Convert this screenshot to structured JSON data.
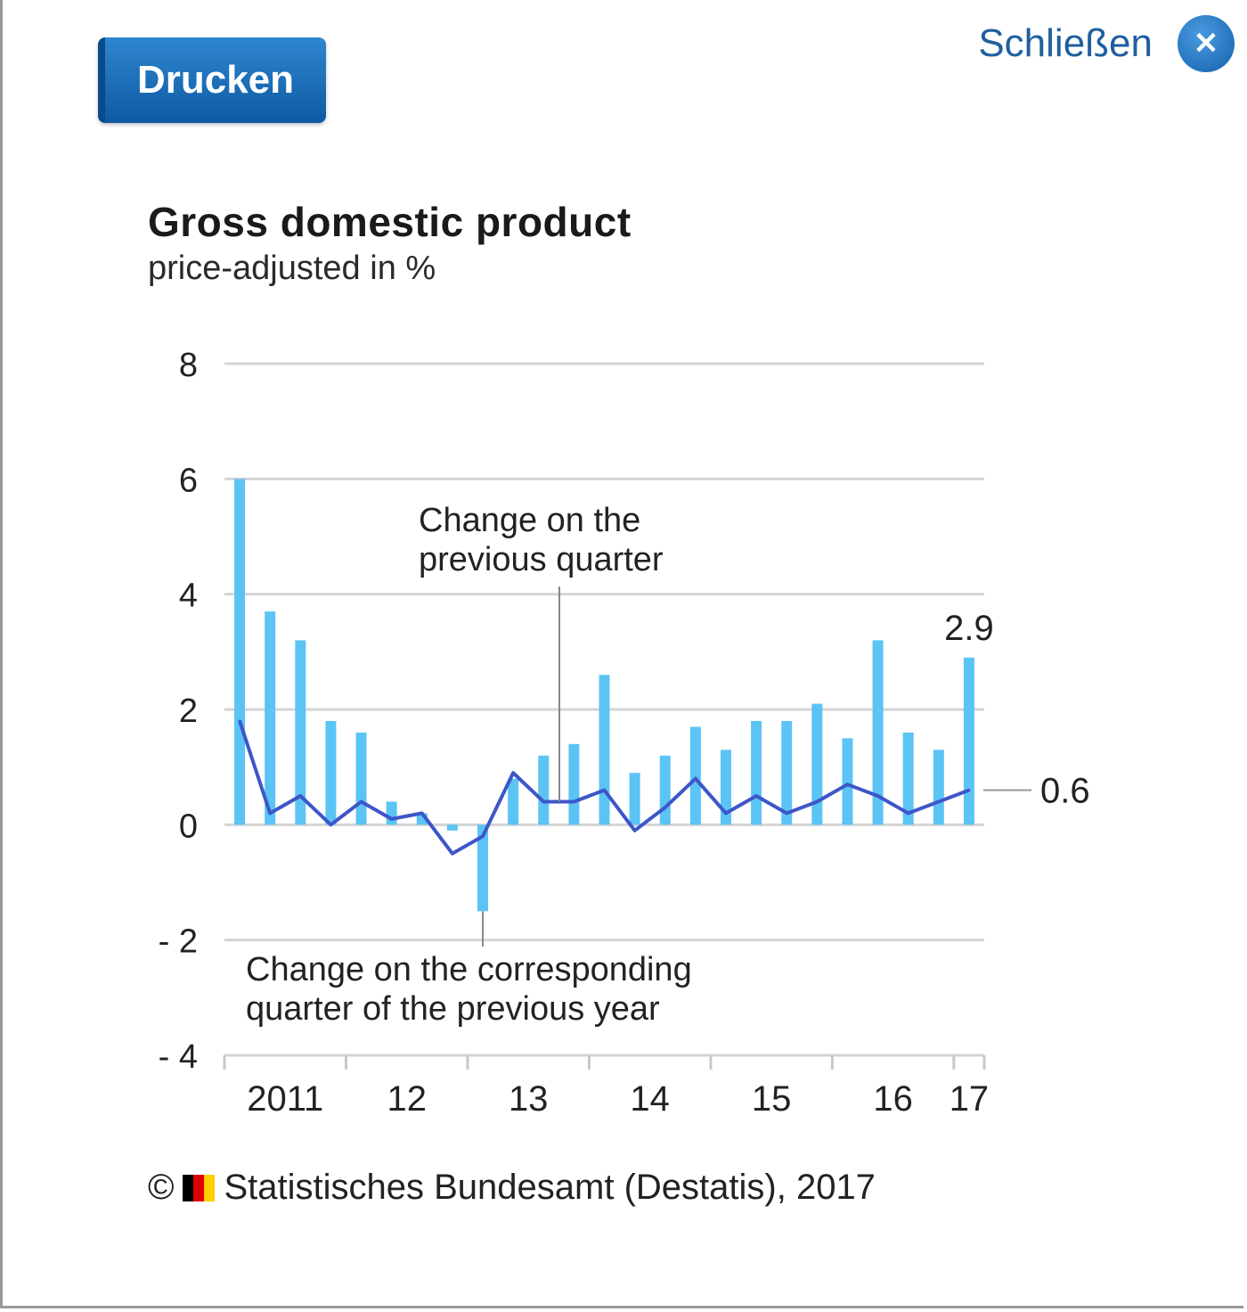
{
  "toolbar": {
    "print_label": "Drucken",
    "close_label": "Schließen"
  },
  "chart_data": {
    "type": "bar+line",
    "title": "Gross domestic product",
    "subtitle": "price-adjusted in %",
    "ylim": [
      -4,
      8
    ],
    "yticks": [
      8,
      6,
      4,
      2,
      0,
      -2,
      -4
    ],
    "year_labels": [
      "2011",
      "12",
      "13",
      "14",
      "15",
      "16",
      "17"
    ],
    "series": [
      {
        "name": "Change on the corresponding quarter of the previous year",
        "kind": "bar",
        "color": "#5bc4f5",
        "values": [
          6.0,
          3.7,
          3.2,
          1.8,
          1.6,
          0.4,
          0.2,
          -0.1,
          -1.5,
          0.8,
          1.2,
          1.4,
          2.6,
          0.9,
          1.2,
          1.7,
          1.3,
          1.8,
          1.8,
          2.1,
          1.5,
          3.2,
          1.6,
          1.3,
          2.9
        ]
      },
      {
        "name": "Change on the previous quarter",
        "kind": "line",
        "color": "#3d56c8",
        "values": [
          1.8,
          0.2,
          0.5,
          0.0,
          0.4,
          0.1,
          0.2,
          -0.5,
          -0.2,
          0.9,
          0.4,
          0.4,
          0.6,
          -0.1,
          0.3,
          0.8,
          0.2,
          0.5,
          0.2,
          0.4,
          0.7,
          0.5,
          0.2,
          0.4,
          0.6
        ]
      }
    ],
    "annotations": {
      "line_label": [
        "Change on the",
        "previous quarter"
      ],
      "bar_label": [
        "Change on the corresponding",
        "quarter of the previous year"
      ],
      "last_bar_value": "2.9",
      "last_line_value": "0.6"
    },
    "grid": true
  },
  "footer": {
    "text": "Statistisches Bundesamt (Destatis), 2017",
    "flag_colors": [
      "#000000",
      "#dd0000",
      "#ffce00"
    ]
  }
}
